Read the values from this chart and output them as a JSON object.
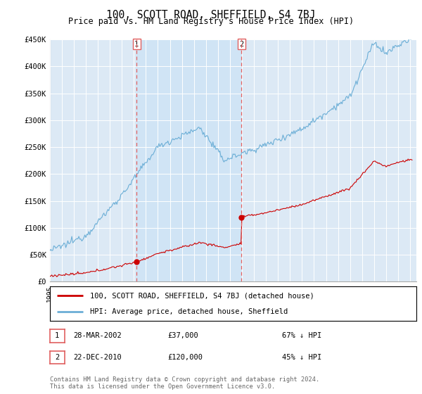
{
  "title": "100, SCOTT ROAD, SHEFFIELD, S4 7BJ",
  "subtitle": "Price paid vs. HM Land Registry's House Price Index (HPI)",
  "ylabel_ticks": [
    "£0",
    "£50K",
    "£100K",
    "£150K",
    "£200K",
    "£250K",
    "£300K",
    "£350K",
    "£400K",
    "£450K"
  ],
  "ylim": [
    0,
    450000
  ],
  "xlim_start": 1995.0,
  "xlim_end": 2025.5,
  "hpi_color": "#6baed6",
  "price_color": "#cc0000",
  "vline_color": "#e06060",
  "shade_color": "#d0e4f5",
  "transaction1": {
    "date": "28-MAR-2002",
    "price": 37000,
    "label": "1",
    "year": 2002.23
  },
  "transaction2": {
    "date": "22-DEC-2010",
    "price": 120000,
    "label": "2",
    "year": 2010.97
  },
  "legend_entry1": "100, SCOTT ROAD, SHEFFIELD, S4 7BJ (detached house)",
  "legend_entry2": "HPI: Average price, detached house, Sheffield",
  "table_row1": [
    "1",
    "28-MAR-2002",
    "£37,000",
    "67% ↓ HPI"
  ],
  "table_row2": [
    "2",
    "22-DEC-2010",
    "£120,000",
    "45% ↓ HPI"
  ],
  "footnote": "Contains HM Land Registry data © Crown copyright and database right 2024.\nThis data is licensed under the Open Government Licence v3.0.",
  "background_color": "#ffffff",
  "plot_bg_color": "#dce9f5"
}
